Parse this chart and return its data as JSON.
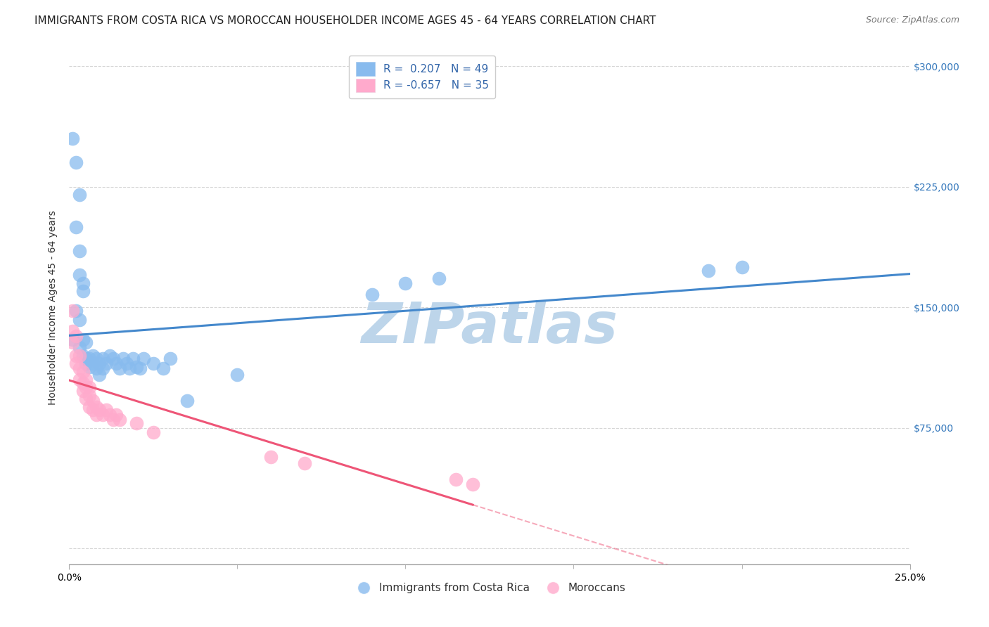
{
  "title": "IMMIGRANTS FROM COSTA RICA VS MOROCCAN HOUSEHOLDER INCOME AGES 45 - 64 YEARS CORRELATION CHART",
  "source": "Source: ZipAtlas.com",
  "ylabel": "Householder Income Ages 45 - 64 years",
  "y_ticks": [
    0,
    75000,
    150000,
    225000,
    300000
  ],
  "y_tick_labels": [
    "",
    "$75,000",
    "$150,000",
    "$225,000",
    "$300,000"
  ],
  "x_min": 0.0,
  "x_max": 0.25,
  "y_min": -10000,
  "y_max": 310000,
  "legend_labels_bottom": [
    "Immigrants from Costa Rica",
    "Moroccans"
  ],
  "costa_rica_color": "#88bbee",
  "moroccan_color": "#ffaacc",
  "trendline_cr_color": "#4488cc",
  "trendline_mo_color": "#ee5577",
  "watermark": "ZIPatlas",
  "watermark_color": "#bdd5ea",
  "watermark_fontsize": 58,
  "title_fontsize": 11,
  "axis_label_fontsize": 10,
  "tick_fontsize": 10,
  "bg_color": "#ffffff",
  "grid_color": "#cccccc",
  "costa_rica_points": [
    [
      0.001,
      255000
    ],
    [
      0.002,
      240000
    ],
    [
      0.003,
      220000
    ],
    [
      0.002,
      200000
    ],
    [
      0.003,
      185000
    ],
    [
      0.003,
      170000
    ],
    [
      0.004,
      165000
    ],
    [
      0.004,
      160000
    ],
    [
      0.002,
      148000
    ],
    [
      0.003,
      142000
    ],
    [
      0.001,
      130000
    ],
    [
      0.003,
      125000
    ],
    [
      0.004,
      130000
    ],
    [
      0.005,
      128000
    ],
    [
      0.004,
      120000
    ],
    [
      0.005,
      118000
    ],
    [
      0.005,
      115000
    ],
    [
      0.006,
      118000
    ],
    [
      0.006,
      113000
    ],
    [
      0.007,
      120000
    ],
    [
      0.007,
      115000
    ],
    [
      0.008,
      118000
    ],
    [
      0.008,
      112000
    ],
    [
      0.009,
      115000
    ],
    [
      0.009,
      108000
    ],
    [
      0.01,
      118000
    ],
    [
      0.01,
      112000
    ],
    [
      0.011,
      115000
    ],
    [
      0.012,
      120000
    ],
    [
      0.013,
      118000
    ],
    [
      0.014,
      115000
    ],
    [
      0.015,
      112000
    ],
    [
      0.016,
      118000
    ],
    [
      0.017,
      115000
    ],
    [
      0.018,
      112000
    ],
    [
      0.019,
      118000
    ],
    [
      0.02,
      113000
    ],
    [
      0.021,
      112000
    ],
    [
      0.022,
      118000
    ],
    [
      0.025,
      115000
    ],
    [
      0.028,
      112000
    ],
    [
      0.03,
      118000
    ],
    [
      0.035,
      92000
    ],
    [
      0.05,
      108000
    ],
    [
      0.09,
      158000
    ],
    [
      0.1,
      165000
    ],
    [
      0.11,
      168000
    ],
    [
      0.19,
      173000
    ],
    [
      0.2,
      175000
    ]
  ],
  "moroccan_points": [
    [
      0.001,
      148000
    ],
    [
      0.001,
      135000
    ],
    [
      0.001,
      128000
    ],
    [
      0.002,
      132000
    ],
    [
      0.002,
      120000
    ],
    [
      0.002,
      115000
    ],
    [
      0.003,
      120000
    ],
    [
      0.003,
      112000
    ],
    [
      0.003,
      105000
    ],
    [
      0.004,
      110000
    ],
    [
      0.004,
      103000
    ],
    [
      0.004,
      98000
    ],
    [
      0.005,
      105000
    ],
    [
      0.005,
      100000
    ],
    [
      0.005,
      93000
    ],
    [
      0.006,
      100000
    ],
    [
      0.006,
      95000
    ],
    [
      0.006,
      88000
    ],
    [
      0.007,
      92000
    ],
    [
      0.007,
      86000
    ],
    [
      0.008,
      88000
    ],
    [
      0.008,
      83000
    ],
    [
      0.009,
      86000
    ],
    [
      0.01,
      83000
    ],
    [
      0.011,
      86000
    ],
    [
      0.012,
      83000
    ],
    [
      0.013,
      80000
    ],
    [
      0.014,
      83000
    ],
    [
      0.015,
      80000
    ],
    [
      0.02,
      78000
    ],
    [
      0.025,
      72000
    ],
    [
      0.06,
      57000
    ],
    [
      0.07,
      53000
    ],
    [
      0.115,
      43000
    ],
    [
      0.12,
      40000
    ]
  ]
}
